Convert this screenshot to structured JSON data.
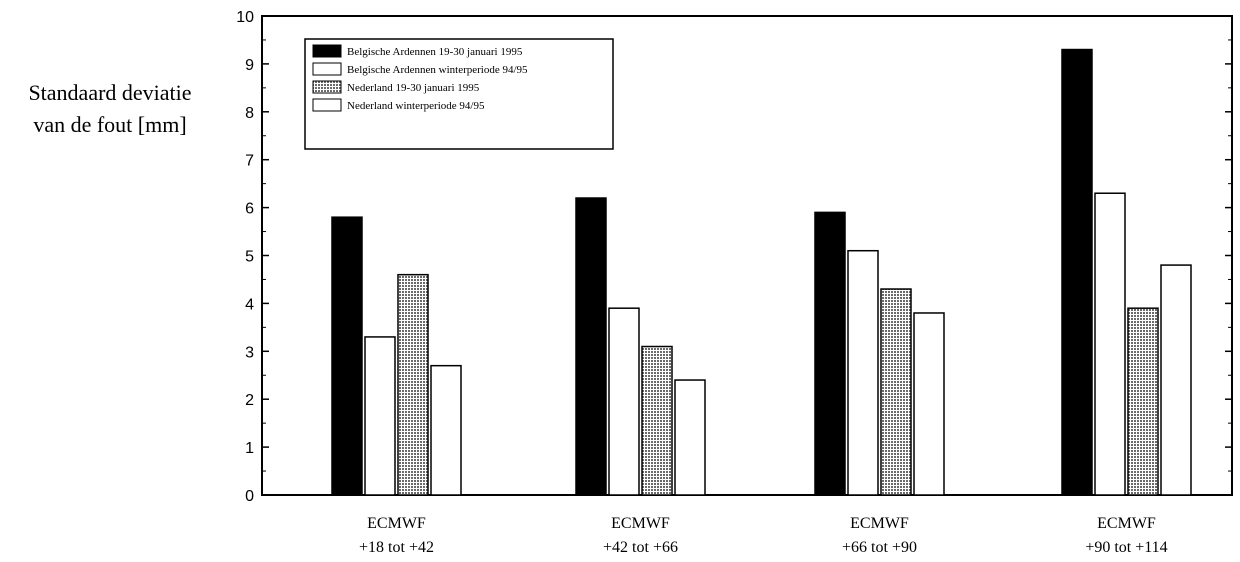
{
  "chart_data": {
    "type": "bar",
    "title": "",
    "ylabel": [
      "Standaard deviatie",
      "van de fout [mm]"
    ],
    "xlabel": "",
    "ylim": [
      0,
      10
    ],
    "yticks": [
      0,
      1,
      2,
      3,
      4,
      5,
      6,
      7,
      8,
      9,
      10
    ],
    "categories": [
      [
        "ECMWF",
        "+18 tot +42"
      ],
      [
        "ECMWF",
        "+42 tot +66"
      ],
      [
        "ECMWF",
        "+66 tot +90"
      ],
      [
        "ECMWF",
        "+90 tot +114"
      ]
    ],
    "series": [
      {
        "name": "Belgische Ardennen 19-30 januari 1995",
        "pattern": "solid",
        "color": "#000000",
        "values": [
          5.8,
          6.2,
          5.9,
          9.3
        ]
      },
      {
        "name": "Belgische Ardennen winterperiode 94/95",
        "pattern": "white",
        "color": "#ffffff",
        "values": [
          3.3,
          3.9,
          5.1,
          6.3
        ]
      },
      {
        "name": "Nederland 19-30 januari 1995",
        "pattern": "dotted",
        "color": "#9a9a9a",
        "values": [
          4.6,
          3.1,
          4.3,
          3.9
        ]
      },
      {
        "name": "Nederland winterperiode 94/95",
        "pattern": "white",
        "color": "#ffffff",
        "values": [
          2.7,
          2.4,
          3.8,
          4.8
        ]
      }
    ],
    "grid": false,
    "legend_position": "top-left"
  }
}
